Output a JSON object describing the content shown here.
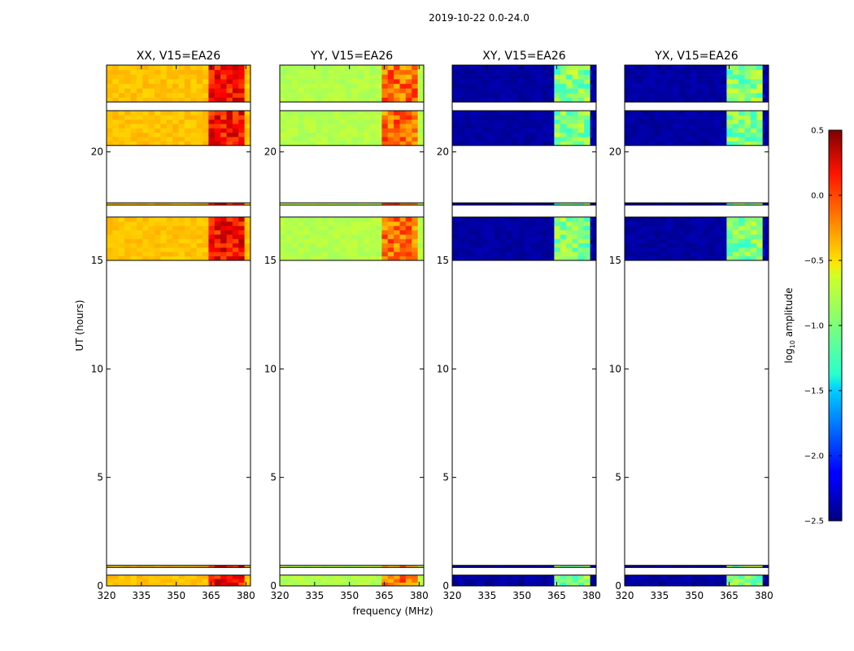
{
  "chart_data": {
    "type": "heatmap",
    "suptitle": "2019-10-22 0.0-24.0",
    "xlabel": "frequency (MHz)",
    "ylabel": "UT (hours)",
    "xlim": [
      320,
      382
    ],
    "ylim": [
      0,
      24
    ],
    "xticks": [
      320,
      335,
      350,
      365,
      380
    ],
    "yticks": [
      0,
      5,
      10,
      15,
      20
    ],
    "colorbar": {
      "label": "log10 amplitude",
      "label_base": "log",
      "label_sub": "10",
      "label_rest": " amplitude",
      "range": [
        -2.5,
        0.5
      ],
      "ticks": [
        0.5,
        0.0,
        -0.5,
        -1.0,
        -1.5,
        -2.0,
        -2.5
      ],
      "tick_labels": [
        "0.5",
        "0.0",
        "−0.5",
        "−1.0",
        "−1.5",
        "−2.0",
        "−2.5"
      ],
      "colormap": "jet"
    },
    "data_time_blocks_hours": [
      [
        0.0,
        0.5
      ],
      [
        0.85,
        0.95
      ],
      [
        15.0,
        17.0
      ],
      [
        17.55,
        17.65
      ],
      [
        20.3,
        21.9
      ],
      [
        22.3,
        24.0
      ]
    ],
    "panels": [
      {
        "name": "XX",
        "title": "XX, V15=EA26",
        "base_level": -0.45,
        "hot_level": 0.1,
        "hot_band_mhz": [
          364,
          380
        ]
      },
      {
        "name": "YY",
        "title": "YY, V15=EA26",
        "base_level": -0.85,
        "hot_level": -0.2,
        "hot_band_mhz": [
          364,
          380
        ]
      },
      {
        "name": "XY",
        "title": "XY, V15=EA26",
        "base_level": -2.4,
        "hot_level": -1.0,
        "hot_band_mhz": [
          364,
          380
        ]
      },
      {
        "name": "YX",
        "title": "YX, V15=EA26",
        "base_level": -2.4,
        "hot_level": -1.0,
        "hot_band_mhz": [
          364,
          380
        ]
      }
    ]
  }
}
